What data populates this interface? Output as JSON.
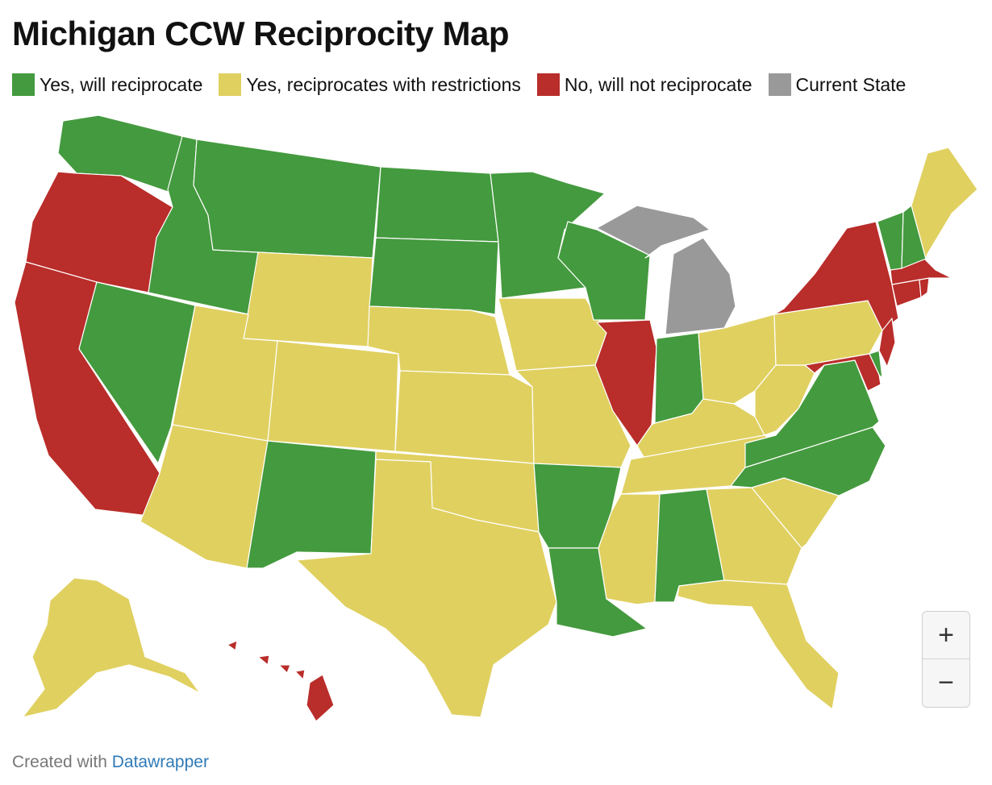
{
  "title": "Michigan CCW Reciprocity Map",
  "legend": [
    {
      "label": "Yes, will reciprocate",
      "color": "#449a3e",
      "key": "yes"
    },
    {
      "label": "Yes, reciprocates with restrictions",
      "color": "#e0d060",
      "key": "restricted"
    },
    {
      "label": "No, will not reciprocate",
      "color": "#b92d2a",
      "key": "no"
    },
    {
      "label": "Current State",
      "color": "#999999",
      "key": "current"
    }
  ],
  "states": {
    "WA": "yes",
    "OR": "no",
    "CA": "no",
    "ID": "yes",
    "NV": "yes",
    "MT": "yes",
    "WY": "restricted",
    "UT": "restricted",
    "AZ": "restricted",
    "CO": "restricted",
    "NM": "yes",
    "ND": "yes",
    "SD": "yes",
    "NE": "restricted",
    "KS": "restricted",
    "OK": "restricted",
    "TX": "restricted",
    "MN": "yes",
    "IA": "restricted",
    "MO": "restricted",
    "AR": "yes",
    "LA": "yes",
    "WI": "yes",
    "IL": "no",
    "MI": "current",
    "IN": "yes",
    "OH": "restricted",
    "KY": "restricted",
    "TN": "restricted",
    "MS": "restricted",
    "AL": "yes",
    "GA": "restricted",
    "FL": "restricted",
    "SC": "restricted",
    "NC": "yes",
    "VA": "yes",
    "WV": "restricted",
    "PA": "restricted",
    "NY": "no",
    "VT": "yes",
    "NH": "yes",
    "ME": "restricted",
    "MA": "no",
    "RI": "no",
    "CT": "no",
    "NJ": "no",
    "DE": "yes",
    "MD": "no",
    "AK": "restricted",
    "HI": "no"
  },
  "zoom": {
    "in_label": "+",
    "out_label": "−"
  },
  "footer": {
    "prefix": "Created with ",
    "link": "Datawrapper"
  }
}
